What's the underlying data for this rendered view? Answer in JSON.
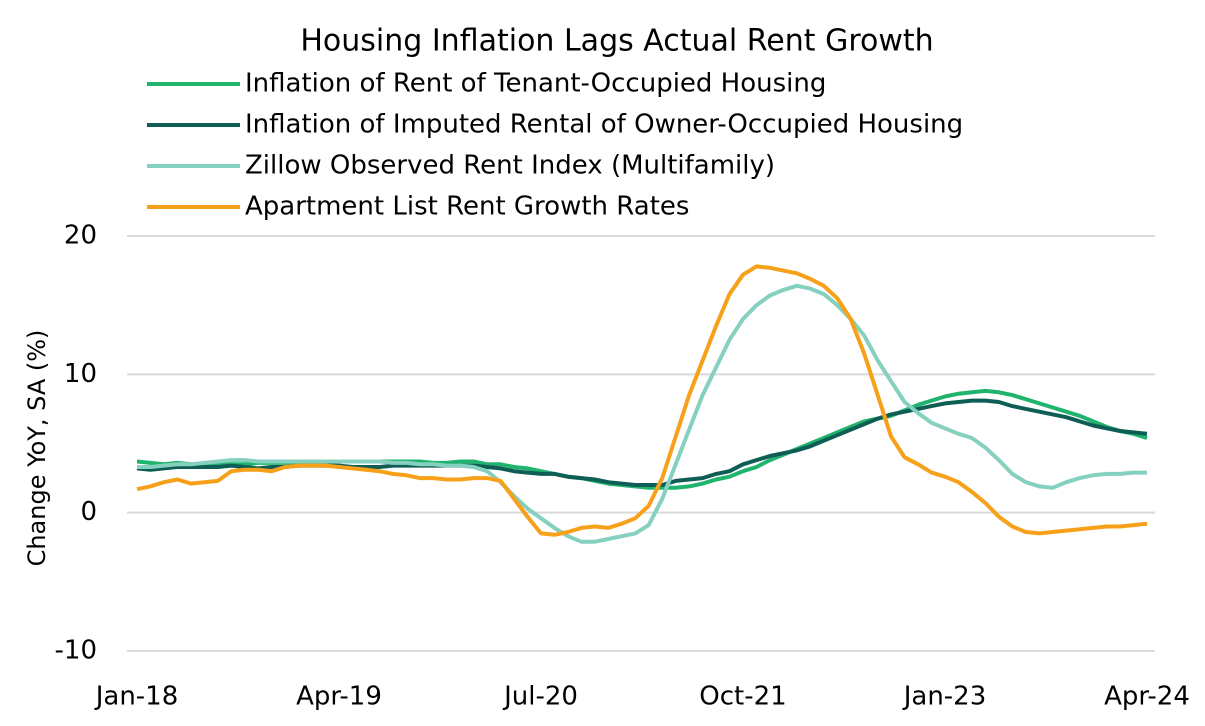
{
  "chart_data": {
    "type": "line",
    "title": "Housing Inflation Lags Actual Rent Growth",
    "y_label": "Change YoY, SA  (%)",
    "categories": [
      "Jan-18",
      null,
      null,
      null,
      null,
      null,
      null,
      null,
      null,
      null,
      null,
      null,
      null,
      null,
      null,
      "Apr-19",
      null,
      null,
      null,
      null,
      null,
      null,
      null,
      null,
      null,
      null,
      null,
      null,
      null,
      null,
      "Jul-20",
      null,
      null,
      null,
      null,
      null,
      null,
      null,
      null,
      null,
      null,
      null,
      null,
      null,
      null,
      "Oct-21",
      null,
      null,
      null,
      null,
      null,
      null,
      null,
      null,
      null,
      null,
      null,
      null,
      null,
      null,
      "Jan-23",
      null,
      null,
      null,
      null,
      null,
      null,
      null,
      null,
      null,
      null,
      null,
      null,
      null,
      null,
      "Apr-24"
    ],
    "ylim": [
      -10,
      20
    ],
    "yticks": [
      -10,
      0,
      10,
      20
    ],
    "grid": true,
    "series": [
      {
        "name": "Inflation of Rent of Tenant-Occupied Housing",
        "color": "#1fb36e",
        "values": [
          3.7,
          3.6,
          3.5,
          3.6,
          3.5,
          3.5,
          3.5,
          3.5,
          3.5,
          3.6,
          3.6,
          3.6,
          3.6,
          3.6,
          3.6,
          3.7,
          3.7,
          3.7,
          3.7,
          3.7,
          3.7,
          3.7,
          3.6,
          3.6,
          3.7,
          3.7,
          3.5,
          3.5,
          3.3,
          3.2,
          3.0,
          2.8,
          2.6,
          2.5,
          2.3,
          2.1,
          2.0,
          1.9,
          1.8,
          1.8,
          1.8,
          1.9,
          2.1,
          2.4,
          2.6,
          3.0,
          3.3,
          3.8,
          4.2,
          4.6,
          5.0,
          5.4,
          5.8,
          6.2,
          6.6,
          6.8,
          7.0,
          7.4,
          7.8,
          8.1,
          8.4,
          8.6,
          8.7,
          8.8,
          8.7,
          8.5,
          8.2,
          7.9,
          7.6,
          7.3,
          7.0,
          6.6,
          6.2,
          5.9,
          5.7,
          5.4
        ]
      },
      {
        "name": "Inflation of Imputed Rental of Owner-Occupied Housing",
        "color": "#0e5e56",
        "values": [
          3.2,
          3.1,
          3.2,
          3.3,
          3.3,
          3.3,
          3.3,
          3.4,
          3.3,
          3.2,
          3.3,
          3.3,
          3.4,
          3.4,
          3.4,
          3.4,
          3.3,
          3.3,
          3.3,
          3.4,
          3.4,
          3.4,
          3.4,
          3.4,
          3.4,
          3.4,
          3.3,
          3.2,
          3.0,
          2.9,
          2.8,
          2.8,
          2.6,
          2.5,
          2.4,
          2.2,
          2.1,
          2.0,
          2.0,
          2.0,
          2.3,
          2.4,
          2.5,
          2.8,
          3.0,
          3.5,
          3.8,
          4.1,
          4.3,
          4.5,
          4.8,
          5.2,
          5.6,
          6.0,
          6.4,
          6.8,
          7.1,
          7.3,
          7.5,
          7.7,
          7.9,
          8.0,
          8.1,
          8.1,
          8.0,
          7.7,
          7.5,
          7.3,
          7.1,
          6.9,
          6.6,
          6.3,
          6.1,
          5.9,
          5.8,
          5.7
        ]
      },
      {
        "name": "Zillow Observed Rent Index (Multifamily)",
        "color": "#85d0bf",
        "values": [
          3.3,
          3.3,
          3.4,
          3.5,
          3.5,
          3.6,
          3.7,
          3.8,
          3.8,
          3.7,
          3.7,
          3.7,
          3.7,
          3.7,
          3.7,
          3.7,
          3.7,
          3.7,
          3.7,
          3.6,
          3.6,
          3.5,
          3.5,
          3.4,
          3.4,
          3.3,
          3.0,
          2.2,
          1.2,
          0.3,
          -0.4,
          -1.1,
          -1.7,
          -2.1,
          -2.1,
          -1.9,
          -1.7,
          -1.5,
          -0.9,
          1.0,
          3.5,
          6.0,
          8.5,
          10.5,
          12.5,
          14.0,
          15.0,
          15.7,
          16.1,
          16.4,
          16.2,
          15.8,
          15.0,
          14.0,
          12.8,
          11.0,
          9.5,
          8.0,
          7.2,
          6.5,
          6.1,
          5.7,
          5.4,
          4.7,
          3.8,
          2.8,
          2.2,
          1.9,
          1.8,
          2.2,
          2.5,
          2.7,
          2.8,
          2.8,
          2.9,
          2.9
        ]
      },
      {
        "name": "Apartment List Rent Growth Rates",
        "color": "#f7a11a",
        "values": [
          1.7,
          1.9,
          2.2,
          2.4,
          2.1,
          2.2,
          2.3,
          3.0,
          3.1,
          3.1,
          3.0,
          3.3,
          3.4,
          3.4,
          3.4,
          3.3,
          3.2,
          3.1,
          3.0,
          2.8,
          2.7,
          2.5,
          2.5,
          2.4,
          2.4,
          2.5,
          2.5,
          2.3,
          1.0,
          -0.3,
          -1.5,
          -1.6,
          -1.4,
          -1.1,
          -1.0,
          -1.1,
          -0.8,
          -0.4,
          0.5,
          2.5,
          5.5,
          8.5,
          11,
          13.5,
          15.8,
          17.2,
          17.8,
          17.7,
          17.5,
          17.3,
          16.9,
          16.4,
          15.5,
          14.0,
          11.5,
          8.5,
          5.5,
          4.0,
          3.5,
          2.9,
          2.6,
          2.2,
          1.5,
          0.7,
          -0.3,
          -1.0,
          -1.4,
          -1.5,
          -1.4,
          -1.3,
          -1.2,
          -1.1,
          -1.0,
          -1.0,
          -0.9,
          -0.8
        ]
      }
    ]
  }
}
